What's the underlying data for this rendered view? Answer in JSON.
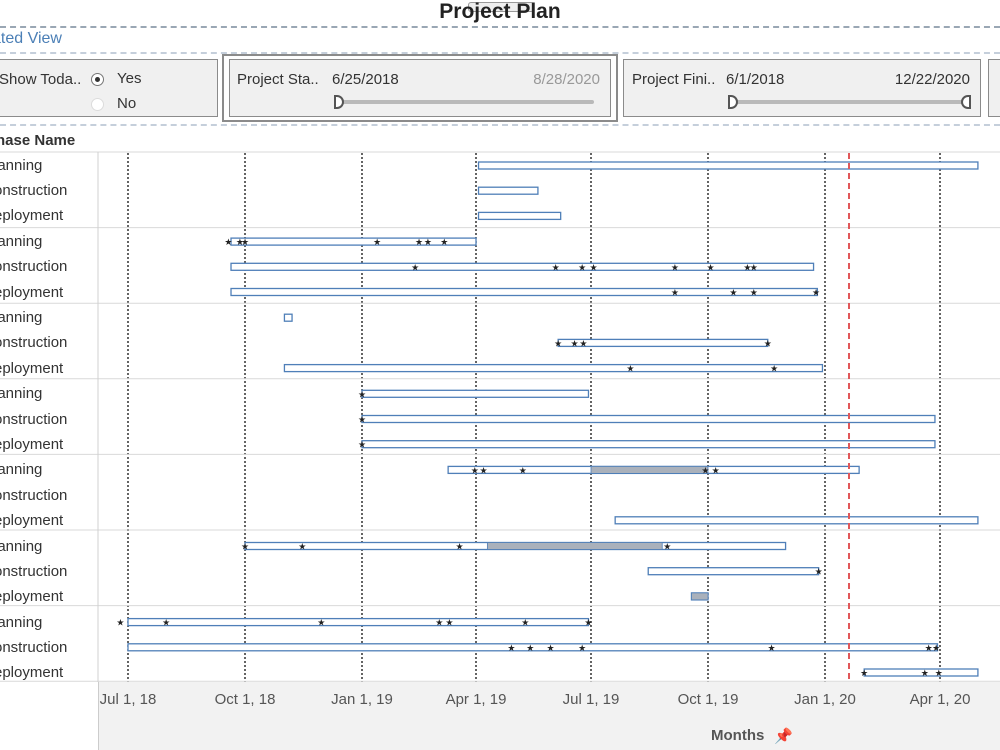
{
  "title": "Project Plan",
  "subheader": "ated View",
  "filters": {
    "show_today": {
      "label": "Show Toda..",
      "options": [
        "Yes",
        "No"
      ],
      "selected": "Yes"
    },
    "project_start": {
      "label": "Project Sta..",
      "from": "6/25/2018",
      "to": "8/28/2020"
    },
    "project_finish": {
      "label": "Project Fini..",
      "from": "6/1/2018",
      "to": "12/22/2020"
    }
  },
  "column_header": "hase Name",
  "row_labels": [
    "lanning",
    "onstruction",
    "eployment",
    "lanning",
    "onstruction",
    "eployment",
    "lanning",
    "onstruction",
    "eployment",
    "lanning",
    "onstruction",
    "eployment",
    "lanning",
    "onstruction",
    "eployment",
    "lanning",
    "onstruction",
    "eployment",
    "lanning",
    "onstruction",
    "eployment"
  ],
  "axis": {
    "ticks": [
      "Jul 1, 18",
      "Oct 1, 18",
      "Jan 1, 19",
      "Apr 1, 19",
      "Jul 1, 19",
      "Oct 1, 19",
      "Jan 1, 20",
      "Apr 1, 20"
    ],
    "title": "Months"
  },
  "chart_data": {
    "type": "gantt",
    "x_range": [
      "2018-06-25",
      "2020-04-30"
    ],
    "today": "2020-01-20",
    "rows": [
      {
        "row": 0,
        "start": "2019-04-03",
        "end": "2020-05-01",
        "markers": []
      },
      {
        "row": 1,
        "start": "2019-04-03",
        "end": "2019-05-20",
        "markers": []
      },
      {
        "row": 2,
        "start": "2019-04-03",
        "end": "2019-06-07",
        "markers": []
      },
      {
        "row": 3,
        "start": "2018-09-20",
        "end": "2019-04-01",
        "markers": [
          "2018-09-18",
          "2018-09-27",
          "2018-10-01",
          "2019-01-13",
          "2019-02-15",
          "2019-02-22",
          "2019-03-07"
        ]
      },
      {
        "row": 4,
        "start": "2018-09-20",
        "end": "2019-12-23",
        "markers": [
          "2019-02-12",
          "2019-06-03",
          "2019-06-24",
          "2019-07-03",
          "2019-09-05",
          "2019-10-03",
          "2019-11-01",
          "2019-11-06"
        ]
      },
      {
        "row": 5,
        "start": "2018-09-20",
        "end": "2019-12-26",
        "markers": [
          "2019-09-05",
          "2019-10-21",
          "2019-11-06",
          "2019-12-25"
        ]
      },
      {
        "row": 6,
        "start": "2018-11-01",
        "end": "2018-11-07",
        "markers": []
      },
      {
        "row": 7,
        "start": "2019-06-05",
        "end": "2019-11-17",
        "markers": [
          "2019-06-05",
          "2019-06-18",
          "2019-06-25",
          "2019-11-17"
        ]
      },
      {
        "row": 8,
        "start": "2018-11-01",
        "end": "2019-12-30",
        "markers": [
          "2019-08-01",
          "2019-11-22"
        ]
      },
      {
        "row": 9,
        "start": "2019-01-01",
        "end": "2019-06-29",
        "markers": [
          "2019-01-01"
        ]
      },
      {
        "row": 10,
        "start": "2019-01-01",
        "end": "2020-03-28",
        "markers": [
          "2019-01-01"
        ]
      },
      {
        "row": 11,
        "start": "2019-01-01",
        "end": "2020-03-28",
        "markers": [
          "2019-01-01"
        ]
      },
      {
        "row": 12,
        "start": "2019-03-10",
        "end": "2020-01-28",
        "markers": [
          "2019-03-31",
          "2019-04-07",
          "2019-05-08",
          "2019-09-29",
          "2019-10-07"
        ],
        "shaded": [
          "2019-07-01",
          "2019-10-01"
        ]
      },
      {
        "row": 13,
        "start": null,
        "end": null,
        "markers": []
      },
      {
        "row": 14,
        "start": "2019-07-20",
        "end": "2020-05-01",
        "markers": []
      },
      {
        "row": 15,
        "start": "2018-10-01",
        "end": "2019-12-01",
        "markers": [
          "2018-10-01",
          "2018-11-15",
          "2019-03-19",
          "2019-08-30"
        ],
        "shaded": [
          "2019-04-10",
          "2019-08-26"
        ]
      },
      {
        "row": 16,
        "start": "2019-08-15",
        "end": "2019-12-27",
        "markers": [
          "2019-12-27"
        ]
      },
      {
        "row": 17,
        "start": "2019-09-18",
        "end": "2019-10-01",
        "markers": [],
        "shaded": [
          "2019-09-18",
          "2019-10-01"
        ]
      },
      {
        "row": 18,
        "start": "2018-07-01",
        "end": "2019-06-29",
        "markers": [
          "2018-06-25",
          "2018-07-31",
          "2018-11-30",
          "2019-03-03",
          "2019-03-11",
          "2019-05-10",
          "2019-06-29"
        ]
      },
      {
        "row": 19,
        "start": "2018-07-01",
        "end": "2020-03-30",
        "markers": [
          "2019-04-29",
          "2019-05-14",
          "2019-05-30",
          "2019-06-24",
          "2019-11-20",
          "2020-03-23",
          "2020-03-29"
        ]
      },
      {
        "row": 20,
        "start": "2020-02-01",
        "end": "2020-05-01",
        "markers": [
          "2020-02-01",
          "2020-03-20",
          "2020-03-31"
        ]
      }
    ]
  },
  "colors": {
    "bar_fill": "#ffffff",
    "bar_border": "#4f7fb8",
    "shaded": "#aab1bb",
    "today_line": "#e15759",
    "grid": "#111111"
  }
}
